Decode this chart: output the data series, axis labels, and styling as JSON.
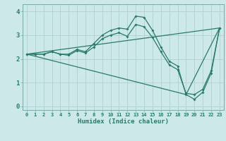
{
  "xlabel": "Humidex (Indice chaleur)",
  "xlim_min": -0.5,
  "xlim_max": 23.5,
  "ylim_min": -0.15,
  "ylim_max": 4.3,
  "xticks": [
    0,
    1,
    2,
    3,
    4,
    5,
    6,
    7,
    8,
    9,
    10,
    11,
    12,
    13,
    14,
    15,
    16,
    17,
    18,
    19,
    20,
    21,
    22,
    23
  ],
  "yticks": [
    0,
    1,
    2,
    3,
    4
  ],
  "bg_color": "#cce8e8",
  "grid_color": "#b0d0d0",
  "line_color": "#2a7a6a",
  "line1_x": [
    0,
    1,
    2,
    3,
    4,
    5,
    6,
    7,
    8,
    9,
    10,
    11,
    12,
    13,
    14,
    15,
    16,
    17,
    18,
    19,
    20,
    21,
    22,
    23
  ],
  "line1_y": [
    2.2,
    2.2,
    2.2,
    2.3,
    2.2,
    2.2,
    2.4,
    2.3,
    2.65,
    3.0,
    3.2,
    3.3,
    3.25,
    3.8,
    3.75,
    3.2,
    2.5,
    1.9,
    1.7,
    0.5,
    0.3,
    0.6,
    1.4,
    3.3
  ],
  "line2_x": [
    0,
    1,
    2,
    3,
    4,
    5,
    6,
    7,
    8,
    9,
    10,
    11,
    12,
    13,
    14,
    15,
    16,
    17,
    18,
    19,
    20,
    21,
    22,
    23
  ],
  "line2_y": [
    2.2,
    2.2,
    2.2,
    2.3,
    2.2,
    2.15,
    2.35,
    2.25,
    2.5,
    2.85,
    3.0,
    3.1,
    2.95,
    3.45,
    3.35,
    2.9,
    2.3,
    1.75,
    1.55,
    0.55,
    0.5,
    0.72,
    1.5,
    3.3
  ],
  "line3_x": [
    0,
    23
  ],
  "line3_y": [
    2.2,
    3.3
  ],
  "line4_x": [
    0,
    19,
    23
  ],
  "line4_y": [
    2.2,
    0.5,
    3.3
  ]
}
